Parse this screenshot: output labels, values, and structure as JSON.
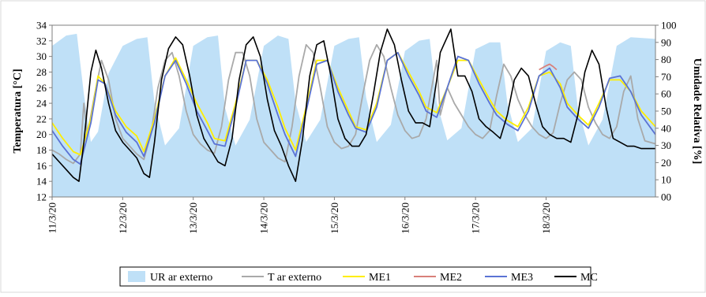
{
  "chart_data": {
    "type": "line",
    "title": "",
    "ylabel": "Temperatura [°C]",
    "y2label": "Umidade Relativa [%]",
    "ylim": [
      12,
      34
    ],
    "yticks": [
      12,
      14,
      16,
      18,
      20,
      22,
      24,
      26,
      28,
      30,
      32,
      34
    ],
    "y2lim": [
      0,
      100
    ],
    "y2ticks": [
      "00",
      "10",
      "20",
      "30",
      "40",
      "50",
      "60",
      "70",
      "80",
      "90",
      "100"
    ],
    "xlim": [
      0,
      8.55
    ],
    "xticks": [
      {
        "x": 0,
        "label": "11/3/20"
      },
      {
        "x": 1,
        "label": "12/3/20"
      },
      {
        "x": 2,
        "label": "13/3/20"
      },
      {
        "x": 3,
        "label": "14/3/20"
      },
      {
        "x": 4,
        "label": "15/3/20"
      },
      {
        "x": 5,
        "label": "16/3/20"
      },
      {
        "x": 6,
        "label": "17/3/20"
      },
      {
        "x": 7,
        "label": "18/3/20"
      }
    ],
    "legend_position": "bottom",
    "grid": false,
    "series": [
      {
        "name": "UR ar externo",
        "type": "area",
        "axis": "right",
        "color": "#bfe0f7",
        "x": [
          0,
          0.2,
          0.35,
          0.45,
          0.55,
          0.65,
          0.8,
          1.0,
          1.2,
          1.35,
          1.45,
          1.6,
          1.8,
          2.0,
          2.2,
          2.35,
          2.45,
          2.6,
          2.8,
          3.0,
          3.2,
          3.35,
          3.45,
          3.6,
          3.8,
          4.0,
          4.2,
          4.35,
          4.45,
          4.6,
          4.8,
          5.0,
          5.2,
          5.35,
          5.45,
          5.6,
          5.8,
          6.0,
          6.2,
          6.35,
          6.45,
          6.6,
          6.8,
          7.0,
          7.2,
          7.35,
          7.45,
          7.6,
          7.8,
          8.0,
          8.2,
          8.55
        ],
        "values": [
          88,
          94,
          95,
          60,
          32,
          38,
          72,
          88,
          92,
          93,
          55,
          30,
          40,
          88,
          93,
          94,
          52,
          30,
          45,
          88,
          94,
          92,
          55,
          32,
          45,
          88,
          92,
          93,
          58,
          32,
          42,
          85,
          91,
          92,
          55,
          33,
          40,
          86,
          90,
          90,
          55,
          32,
          40,
          85,
          90,
          88,
          52,
          30,
          45,
          88,
          93,
          92
        ]
      },
      {
        "name": "T ar externo",
        "type": "line",
        "axis": "left",
        "color": "#a9a9a9",
        "x": [
          0,
          0.1,
          0.2,
          0.3,
          0.4,
          0.45,
          0.5,
          0.6,
          0.7,
          0.8,
          0.9,
          1.0,
          1.1,
          1.2,
          1.3,
          1.4,
          1.5,
          1.6,
          1.7,
          1.8,
          1.9,
          2.0,
          2.1,
          2.2,
          2.3,
          2.4,
          2.5,
          2.6,
          2.7,
          2.8,
          2.9,
          3.0,
          3.1,
          3.2,
          3.3,
          3.4,
          3.5,
          3.6,
          3.7,
          3.8,
          3.9,
          4.0,
          4.1,
          4.2,
          4.3,
          4.4,
          4.5,
          4.6,
          4.7,
          4.8,
          4.9,
          5.0,
          5.1,
          5.2,
          5.3,
          5.4,
          5.45,
          5.5,
          5.6,
          5.7,
          5.8,
          5.9,
          6.0,
          6.1,
          6.2,
          6.3,
          6.4,
          6.5,
          6.6,
          6.7,
          6.8,
          6.9,
          7.0,
          7.1,
          7.2,
          7.3,
          7.4,
          7.5,
          7.6,
          7.7,
          7.8,
          7.9,
          8.0,
          8.1,
          8.2,
          8.3,
          8.4,
          8.55
        ],
        "values": [
          18,
          17.5,
          16.8,
          16.3,
          17.5,
          24,
          20,
          25,
          29.5,
          27,
          22,
          19.5,
          18.5,
          17.5,
          16.8,
          20,
          26,
          29.5,
          30.5,
          27.5,
          23,
          20,
          18.8,
          18,
          17.6,
          21,
          27,
          30.5,
          30.5,
          27.5,
          22,
          19,
          18,
          17,
          16.5,
          21,
          27.5,
          31.5,
          30.5,
          26,
          21,
          19,
          18.2,
          18.5,
          20,
          25,
          29.5,
          31.5,
          30,
          26,
          22.5,
          20.5,
          19.5,
          19.8,
          22,
          27,
          29.5,
          22.5,
          26,
          24,
          22.5,
          21,
          20,
          19.5,
          20.5,
          25,
          29,
          27.5,
          24.5,
          22.5,
          21,
          20,
          19.5,
          20.2,
          24,
          27,
          28,
          27,
          23.5,
          21.5,
          20,
          19.5,
          21,
          25.5,
          27.5,
          22,
          19.2,
          18.8
        ]
      },
      {
        "name": "ME1",
        "type": "line",
        "axis": "left",
        "color": "#ffee00",
        "x": [
          0,
          0.15,
          0.3,
          0.4,
          0.55,
          0.65,
          0.75,
          0.9,
          1.05,
          1.2,
          1.3,
          1.45,
          1.6,
          1.75,
          1.9,
          2.05,
          2.2,
          2.3,
          2.45,
          2.6,
          2.75,
          2.9,
          3.05,
          3.2,
          3.3,
          3.45,
          3.6,
          3.75,
          3.9,
          4.05,
          4.2,
          4.3,
          4.45,
          4.6,
          4.75,
          4.9,
          5.05,
          5.2,
          5.3,
          5.45,
          5.6,
          5.75,
          5.9,
          6.05,
          6.2,
          6.3,
          6.45,
          6.6,
          6.75,
          6.9,
          7.05,
          7.2,
          7.3,
          7.45,
          7.6,
          7.75,
          7.9,
          8.05,
          8.2,
          8.35,
          8.55
        ],
        "values": [
          21.5,
          19.5,
          17.8,
          17.4,
          22,
          27.5,
          26.5,
          23,
          21,
          19.8,
          17.8,
          22,
          27.5,
          29.8,
          27,
          24,
          21.5,
          19.5,
          19.2,
          24,
          29.5,
          29.5,
          27,
          23.5,
          20.8,
          18,
          23.5,
          29.5,
          29.5,
          26,
          23,
          21,
          20.6,
          24,
          29.5,
          30.5,
          28,
          25.5,
          23.5,
          22.8,
          26,
          29.5,
          29.5,
          27,
          24.5,
          23,
          21.8,
          21,
          23.5,
          27.5,
          28,
          26.5,
          24,
          22.5,
          21.2,
          24,
          27,
          27,
          25.5,
          23,
          21
        ]
      },
      {
        "name": "ME2",
        "type": "line",
        "axis": "left",
        "color": "#d9807a",
        "x": [
          6.9,
          7.0,
          7.05,
          7.1,
          7.15
        ],
        "values": [
          28.3,
          28.8,
          29.0,
          28.7,
          28.3
        ]
      },
      {
        "name": "ME3",
        "type": "line",
        "axis": "left",
        "color": "#5b73d4",
        "x": [
          0,
          0.15,
          0.3,
          0.4,
          0.55,
          0.65,
          0.75,
          0.9,
          1.05,
          1.2,
          1.3,
          1.45,
          1.6,
          1.75,
          1.9,
          2.05,
          2.2,
          2.3,
          2.45,
          2.6,
          2.75,
          2.9,
          3.05,
          3.2,
          3.3,
          3.45,
          3.6,
          3.75,
          3.9,
          4.05,
          4.2,
          4.3,
          4.45,
          4.6,
          4.75,
          4.9,
          5.05,
          5.2,
          5.3,
          5.45,
          5.6,
          5.75,
          5.9,
          6.05,
          6.2,
          6.3,
          6.45,
          6.6,
          6.75,
          6.9,
          7.05,
          7.2,
          7.3,
          7.45,
          7.6,
          7.75,
          7.9,
          8.05,
          8.2,
          8.35,
          8.55
        ],
        "values": [
          20.5,
          18.5,
          16.8,
          16.2,
          21.5,
          27,
          26.5,
          22.5,
          20.3,
          19,
          17.2,
          21.5,
          27.5,
          29.5,
          26.5,
          23,
          20.5,
          18.8,
          18.5,
          23.5,
          29.5,
          29.5,
          26.5,
          22.5,
          20,
          17.2,
          23,
          29,
          29.5,
          25.5,
          22.5,
          20.8,
          20.3,
          23.5,
          29.5,
          30.5,
          27.5,
          25,
          23,
          22.2,
          26,
          30,
          29.5,
          26.5,
          24,
          22.5,
          21.3,
          20.5,
          23,
          27.5,
          28.5,
          26,
          23.5,
          22,
          20.8,
          23.5,
          27.2,
          27.5,
          25.5,
          22.5,
          20
        ]
      },
      {
        "name": "MC",
        "type": "line",
        "axis": "left",
        "color": "#000000",
        "x": [
          0,
          0.1,
          0.2,
          0.3,
          0.38,
          0.45,
          0.55,
          0.62,
          0.7,
          0.8,
          0.9,
          1.0,
          1.1,
          1.2,
          1.3,
          1.38,
          1.45,
          1.55,
          1.65,
          1.75,
          1.85,
          1.95,
          2.05,
          2.15,
          2.25,
          2.35,
          2.45,
          2.55,
          2.65,
          2.75,
          2.85,
          2.95,
          3.05,
          3.15,
          3.25,
          3.35,
          3.45,
          3.55,
          3.65,
          3.75,
          3.85,
          3.95,
          4.05,
          4.15,
          4.25,
          4.35,
          4.45,
          4.55,
          4.65,
          4.75,
          4.85,
          4.95,
          5.05,
          5.15,
          5.25,
          5.35,
          5.45,
          5.5,
          5.55,
          5.65,
          5.75,
          5.85,
          5.95,
          6.05,
          6.15,
          6.25,
          6.35,
          6.45,
          6.55,
          6.65,
          6.75,
          6.85,
          6.95,
          7.05,
          7.15,
          7.25,
          7.35,
          7.45,
          7.55,
          7.65,
          7.75,
          7.85,
          7.95,
          8.05,
          8.15,
          8.25,
          8.35,
          8.45,
          8.55
        ],
        "values": [
          17.5,
          16.5,
          15.5,
          14.5,
          14,
          19,
          28,
          30.8,
          28.5,
          24,
          20.5,
          19,
          18,
          17,
          15,
          14.5,
          19,
          27,
          31,
          32.5,
          31.5,
          27.5,
          22.5,
          19.5,
          18,
          16.5,
          16,
          19.5,
          27,
          31.5,
          32.5,
          30,
          24.5,
          20.5,
          18.5,
          16,
          14,
          19.5,
          27.5,
          31.5,
          32,
          27.5,
          22,
          19.5,
          18.5,
          18.5,
          20,
          25,
          30.5,
          33.5,
          31.5,
          27,
          23,
          21.5,
          21.5,
          21,
          27,
          30.5,
          31.5,
          33.5,
          27.5,
          27.5,
          25.5,
          22,
          21,
          20.3,
          19.5,
          22.5,
          27,
          28.5,
          27.5,
          24,
          21,
          20,
          19.5,
          19.5,
          19,
          22.5,
          28,
          30.8,
          29,
          23.5,
          19.5,
          19,
          18.5,
          18.5,
          18.2,
          18.2,
          18.2
        ]
      }
    ]
  }
}
